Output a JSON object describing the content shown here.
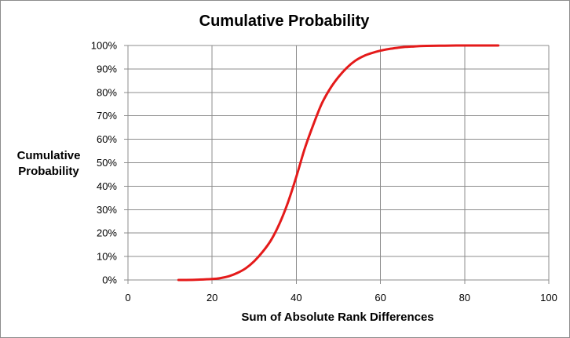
{
  "chart_data": {
    "type": "line",
    "title": "Cumulative Probability",
    "xlabel": "Sum of Absolute Rank Differences",
    "ylabel": [
      "Cumulative",
      "Probability"
    ],
    "xlim": [
      0,
      100
    ],
    "ylim": [
      0,
      1
    ],
    "x_ticks": [
      0,
      20,
      40,
      60,
      80,
      100
    ],
    "x_tick_labels": [
      "0",
      "20",
      "40",
      "60",
      "80",
      "100"
    ],
    "y_ticks": [
      0,
      0.1,
      0.2,
      0.3,
      0.4,
      0.5,
      0.6,
      0.7,
      0.8,
      0.9,
      1.0
    ],
    "y_tick_labels": [
      "0%",
      "10%",
      "20%",
      "30%",
      "40%",
      "50%",
      "60%",
      "70%",
      "80%",
      "90%",
      "100%"
    ],
    "grid": true,
    "legend": "none",
    "series": [
      {
        "color": "#e41a1a",
        "x": [
          12,
          16,
          20,
          22,
          24,
          26,
          28,
          30,
          32,
          34,
          36,
          38,
          40,
          42,
          44,
          46,
          48,
          50,
          52,
          54,
          56,
          58,
          60,
          62,
          64,
          66,
          68,
          70,
          74,
          78,
          82,
          88
        ],
        "y": [
          0.0,
          0.001,
          0.004,
          0.008,
          0.016,
          0.03,
          0.05,
          0.08,
          0.12,
          0.17,
          0.24,
          0.33,
          0.44,
          0.56,
          0.66,
          0.75,
          0.815,
          0.865,
          0.905,
          0.935,
          0.955,
          0.968,
          0.978,
          0.985,
          0.99,
          0.994,
          0.996,
          0.998,
          0.999,
          1.0,
          1.0,
          1.0
        ]
      }
    ]
  }
}
